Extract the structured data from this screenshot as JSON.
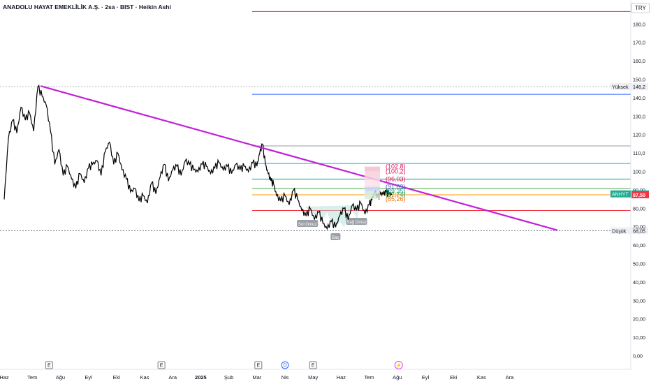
{
  "header": {
    "title": "ANADOLU HAYAT EMEKLİLİK A.Ş. · 2sa · BIST · Heikin Ashi",
    "currency": "TRY"
  },
  "chart_data": {
    "type": "line",
    "style": "heikin-ashi price chart with drawings",
    "price_axis": {
      "ticks": [
        "180,0",
        "170,0",
        "160,0",
        "150,0",
        "140,0",
        "130,0",
        "120,0",
        "110,0",
        "100,0",
        "90,00",
        "80,00",
        "70,00",
        "60,00",
        "50,00",
        "40,00",
        "30,00",
        "20,00",
        "10,00",
        "0,00"
      ],
      "tick_values": [
        180,
        170,
        160,
        150,
        140,
        130,
        120,
        110,
        100,
        90,
        80,
        70,
        60,
        50,
        40,
        30,
        20,
        10,
        0
      ],
      "ylim": [
        0,
        185
      ],
      "position": "right"
    },
    "time_axis": {
      "ticks": [
        "Haz",
        "Tem",
        "Ağu",
        "Eyl",
        "Eki",
        "Kas",
        "Ara",
        "2025",
        "Şub",
        "Mar",
        "Nis",
        "May",
        "Haz",
        "Tem",
        "Ağu",
        "Eyl",
        "Eki",
        "Kas",
        "Ara"
      ],
      "tick_index": [
        0,
        1,
        2,
        3,
        4,
        5,
        6,
        7,
        8,
        9,
        10,
        11,
        12,
        13,
        14,
        15,
        16,
        17,
        18
      ]
    },
    "price_series": {
      "name": "",
      "x_month_index": [
        0.0,
        0.15,
        0.3,
        0.45,
        0.6,
        0.75,
        0.9,
        1.05,
        1.2,
        1.35,
        1.5,
        1.65,
        1.8,
        1.95,
        2.1,
        2.25,
        2.4,
        2.55,
        2.7,
        2.85,
        3.0,
        3.15,
        3.3,
        3.45,
        3.6,
        3.75,
        3.9,
        4.05,
        4.2,
        4.35,
        4.5,
        4.65,
        4.8,
        4.95,
        5.1,
        5.25,
        5.4,
        5.55,
        5.7,
        5.85,
        6.0,
        6.15,
        6.3,
        6.45,
        6.6,
        6.75,
        6.9,
        7.05,
        7.2,
        7.35,
        7.5,
        7.65,
        7.8,
        7.95,
        8.1,
        8.25,
        8.4,
        8.55,
        8.7,
        8.85,
        9.0,
        9.1,
        9.2,
        9.3,
        9.4,
        9.5,
        9.6,
        9.7,
        9.85,
        10.0,
        10.15,
        10.3,
        10.45,
        10.6,
        10.75,
        10.9,
        11.05,
        11.2,
        11.35,
        11.5,
        11.65,
        11.8,
        11.95,
        12.1,
        12.25,
        12.4,
        12.55,
        12.7,
        12.85,
        13.0,
        13.1,
        13.2,
        13.3,
        13.4,
        13.5,
        13.6,
        13.7,
        13.8
      ],
      "values": [
        85,
        118,
        128,
        121,
        135,
        128,
        132,
        122,
        146,
        141,
        136,
        122,
        104,
        112,
        98,
        103,
        96,
        91,
        99,
        94,
        102,
        104,
        106,
        98,
        111,
        116,
        104,
        110,
        101,
        96,
        89,
        91,
        84,
        87,
        83,
        94,
        88,
        97,
        104,
        95,
        101,
        103,
        98,
        106,
        104,
        101,
        100,
        104,
        103,
        99,
        102,
        105,
        101,
        103,
        99,
        104,
        101,
        103,
        100,
        105,
        103,
        110,
        115,
        104,
        99,
        95,
        93,
        87,
        84,
        87,
        82,
        90,
        85,
        79,
        76,
        80,
        74,
        78,
        72,
        69,
        73,
        70,
        76,
        80,
        74,
        82,
        79,
        83,
        77,
        82,
        85,
        89,
        86,
        88,
        88,
        89,
        88,
        87.5
      ]
    },
    "trendline": {
      "start": [
        1.3,
        146.5
      ],
      "end": [
        19.7,
        68.3
      ],
      "color": "#c21fd8"
    },
    "levels": [
      {
        "value": 187,
        "color": "#f23645",
        "label": ""
      },
      {
        "value": 146.2,
        "color": "#b2b5be",
        "label": "Yüksek",
        "value_label": "146,2"
      },
      {
        "value": 142,
        "color": "#2962ff",
        "label": ""
      },
      {
        "value": 114,
        "color": "#9598a1",
        "label": ""
      },
      {
        "value": 104.5,
        "color": "#00bcd4",
        "label": ""
      },
      {
        "value": 96,
        "color": "#089981",
        "label": ""
      },
      {
        "value": 91,
        "color": "#4caf50",
        "label": ""
      },
      {
        "value": 87.5,
        "color": "#ff9800",
        "label": ""
      },
      {
        "value": 79,
        "color": "#f23645",
        "label": ""
      },
      {
        "value": 68.05,
        "color": "#787b86",
        "label": "Düşük",
        "value_label": "68,05"
      }
    ],
    "fib_labels": [
      "(102,8)",
      "(100,2)",
      "(96,03)",
      "(91,89)",
      "(89,35)",
      "(87,74)",
      "(85,26)"
    ],
    "fib_values": [
      102.8,
      100.2,
      96.03,
      91.89,
      89.35,
      87.74,
      85.26
    ],
    "pattern_labels": {
      "left_shoulder": "Sol Omuz",
      "head": "Baş",
      "right_shoulder": "Sağ Omuz"
    },
    "last_price_tags": [
      {
        "text": "87,99",
        "value": 87.99,
        "color": "#22ab94",
        "prefix": "ANHYT"
      },
      {
        "text": "87,50",
        "value": 87.5,
        "color": "#f23645"
      }
    ],
    "event_markers": [
      {
        "month_index": 1.6,
        "symbol": "E"
      },
      {
        "month_index": 5.6,
        "symbol": "E"
      },
      {
        "month_index": 9.05,
        "symbol": "E"
      },
      {
        "month_index": 10.0,
        "symbol": "D"
      },
      {
        "month_index": 11.0,
        "symbol": "E"
      },
      {
        "month_index": 14.05,
        "symbol": "⚡"
      }
    ],
    "grid": false,
    "colors": {
      "price": "#000000",
      "background": "#ffffff"
    }
  }
}
